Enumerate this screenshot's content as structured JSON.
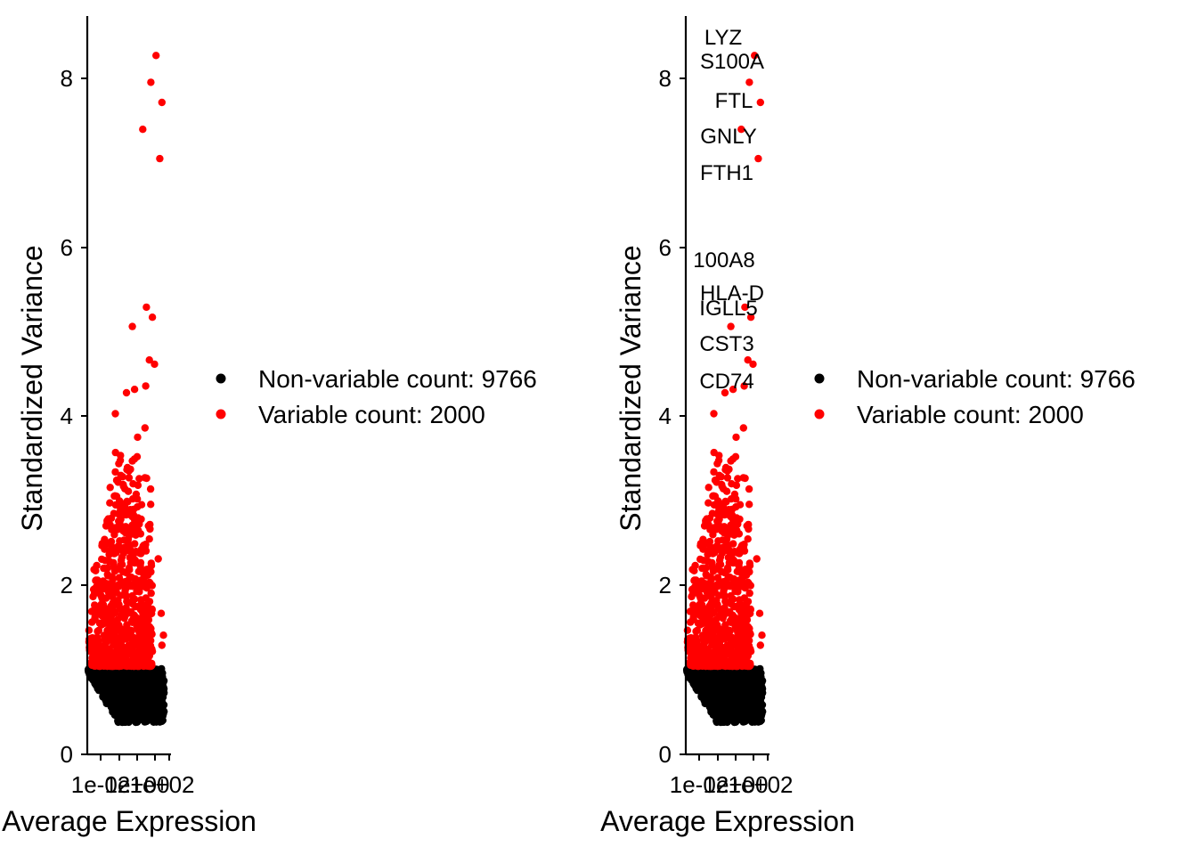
{
  "chart_data": [
    {
      "type": "scatter",
      "xlabel": "Average Expression",
      "ylabel": "Standardized Variance",
      "x_scale": "log10",
      "x_tick_labels": [
        "1e-02",
        "1e+00",
        "1e+02"
      ],
      "x_tick_note": "x tick labels overlap and are largely illegible in the original",
      "y_ticks": [
        0,
        2,
        4,
        6,
        8
      ],
      "ylim": [
        0,
        8.8
      ],
      "grid": false,
      "legend_position": "right",
      "legend": [
        {
          "label": "Non-variable count: 9766",
          "color": "#000000"
        },
        {
          "label": "Variable count: 2000",
          "color": "#FF0000"
        }
      ],
      "highlighted_points": [
        {
          "x_log10": 2.35,
          "y": 8.33
        },
        {
          "x_log10": 2.0,
          "y": 8.01
        },
        {
          "x_log10": 2.75,
          "y": 7.77
        },
        {
          "x_log10": 1.45,
          "y": 7.45
        },
        {
          "x_log10": 2.6,
          "y": 7.1
        },
        {
          "x_log10": 1.7,
          "y": 5.33
        },
        {
          "x_log10": 2.1,
          "y": 5.21
        },
        {
          "x_log10": 0.75,
          "y": 5.1
        },
        {
          "x_log10": 1.9,
          "y": 4.7
        },
        {
          "x_log10": 2.25,
          "y": 4.65
        },
        {
          "x_log10": 1.65,
          "y": 4.39
        },
        {
          "x_log10": 0.9,
          "y": 4.35
        },
        {
          "x_log10": 0.35,
          "y": 4.31
        },
        {
          "x_log10": -0.4,
          "y": 4.06
        },
        {
          "x_log10": 1.6,
          "y": 3.89
        },
        {
          "x_log10": 1.1,
          "y": 3.78
        }
      ],
      "variable_count": 2000,
      "non_variable_count": 9766
    },
    {
      "type": "scatter",
      "xlabel": "Average Expression",
      "ylabel": "Standardized Variance",
      "x_scale": "log10",
      "x_tick_labels": [
        "1e-02",
        "1e+00",
        "1e+02"
      ],
      "y_ticks": [
        0,
        2,
        4,
        6,
        8
      ],
      "ylim": [
        0,
        8.8
      ],
      "grid": false,
      "legend_position": "right",
      "legend": [
        {
          "label": "Non-variable count: 9766",
          "color": "#000000"
        },
        {
          "label": "Variable count: 2000",
          "color": "#FF0000"
        }
      ],
      "gene_labels": [
        "LYZ",
        "S100A",
        "FTL",
        "GNLY",
        "FTH1",
        "100A8",
        "HLA-D",
        "IGLL5",
        "CST3",
        "CD74"
      ],
      "variable_count": 2000,
      "non_variable_count": 9766
    }
  ]
}
